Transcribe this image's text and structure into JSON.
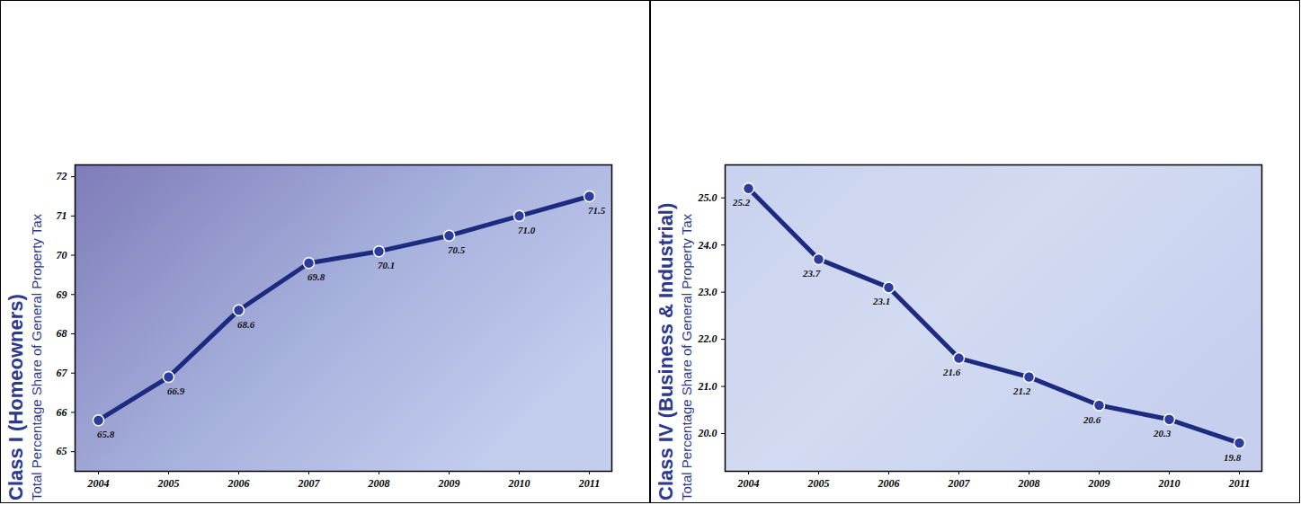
{
  "chart_data": [
    {
      "type": "line",
      "title": "Class I (Homeowners)",
      "y_label": "Total Percentage Share of General Property Tax",
      "categories": [
        "2004",
        "2005",
        "2006",
        "2007",
        "2008",
        "2009",
        "2010",
        "2011"
      ],
      "values": [
        65.8,
        66.9,
        68.6,
        69.8,
        70.1,
        70.5,
        71.0,
        71.5
      ],
      "value_labels": [
        "65.8",
        "66.9",
        "68.6",
        "69.8",
        "70.1",
        "70.5",
        "71.0",
        "71.5"
      ],
      "color": "#1c2a80",
      "marker": "circle",
      "data_labels": true,
      "grid": false,
      "ylim": [
        64.5,
        72.3
      ],
      "yticks": [
        65,
        66,
        67,
        68,
        69,
        70,
        71,
        72
      ]
    },
    {
      "type": "line",
      "title": "Class IV (Business & Industrial)",
      "y_label": "Total Percentage Share of General Property Tax",
      "categories": [
        "2004",
        "2005",
        "2006",
        "2007",
        "2008",
        "2009",
        "2010",
        "2011"
      ],
      "values": [
        25.2,
        23.7,
        23.1,
        21.6,
        21.2,
        20.6,
        20.3,
        19.8
      ],
      "value_labels": [
        "25.2",
        "23.7",
        "23.1",
        "21.6",
        "21.2",
        "20.6",
        "20.3",
        "19.8"
      ],
      "color": "#1c2a80",
      "marker": "circle",
      "data_labels": true,
      "grid": false,
      "ylim": [
        19.2,
        25.7
      ],
      "yticks": [
        20,
        21,
        22,
        23,
        24,
        25
      ]
    }
  ]
}
